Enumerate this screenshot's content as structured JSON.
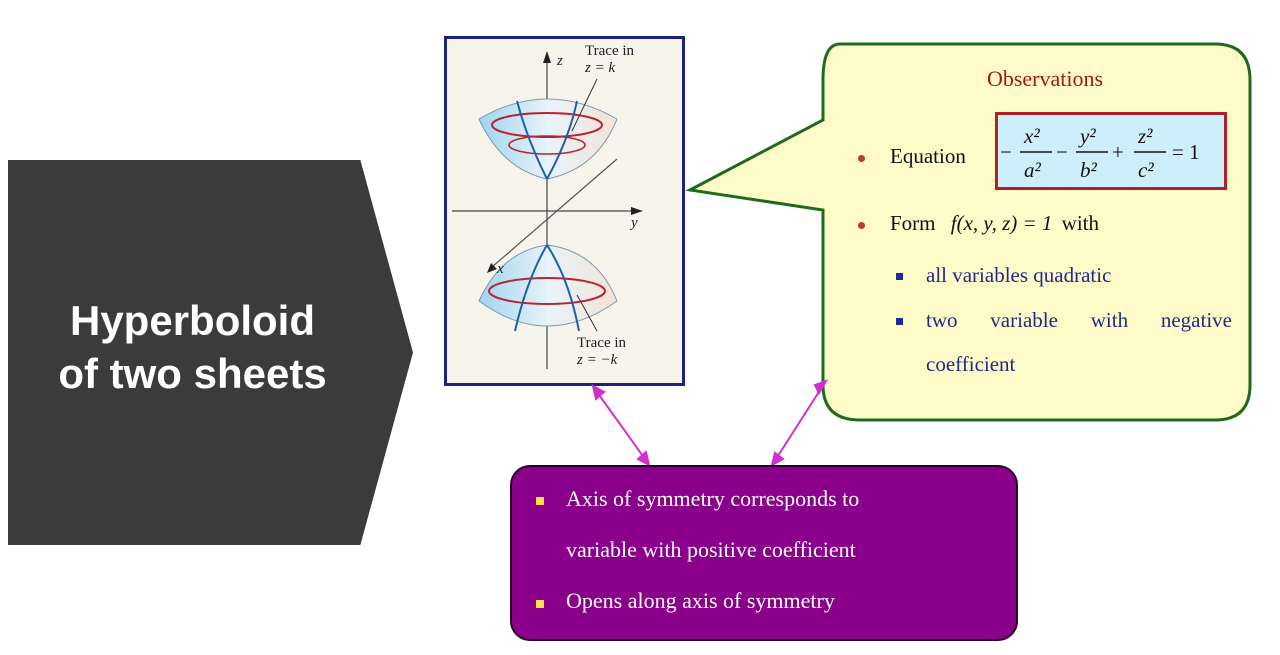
{
  "title": {
    "line1": "Hyperboloid",
    "line2": "of two sheets"
  },
  "figure": {
    "axis_z": "z",
    "axis_y": "y",
    "axis_x": "x",
    "top_trace": {
      "line1": "Trace in",
      "line2": "z = k"
    },
    "bottom_trace": {
      "line1": "Trace in",
      "line2": "z = −k"
    }
  },
  "observations": {
    "heading": "Observations",
    "equation_label": "Equation",
    "equation": {
      "t1_num": "x²",
      "t1_den": "a²",
      "op1": "−",
      "t2_num": "y²",
      "t2_den": "b²",
      "op2": "+",
      "t3_num": "z²",
      "t3_den": "c²",
      "lead": "−",
      "rhs": "= 1"
    },
    "form_label": "Form",
    "form_expr": "f(x, y, z) = 1",
    "form_with": "with",
    "sub_items": [
      "all variables quadratic",
      "two variable with negative",
      "coefficient"
    ]
  },
  "purple_box": {
    "line1": "Axis of symmetry corresponds to",
    "line2": "variable with positive coefficient",
    "line3": "Opens along axis of symmetry"
  },
  "colors": {
    "arrow": "#3b3b3b",
    "bubble": "#fffbc8",
    "bubble_border": "#1e6b1e",
    "purple": "#8b008b",
    "connector": "#d030d0"
  }
}
